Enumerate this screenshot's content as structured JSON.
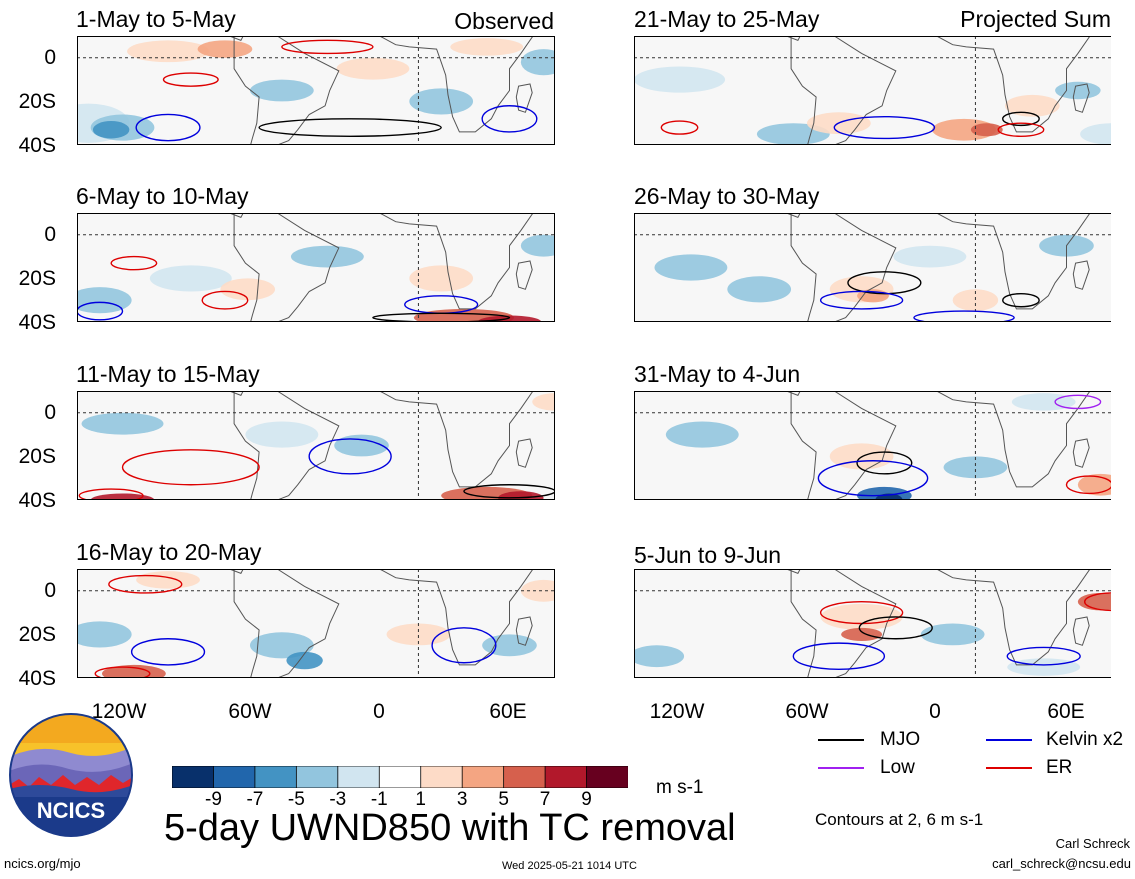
{
  "panels": [
    {
      "title": "1-May to 5-May",
      "tag": "Observed"
    },
    {
      "title": "21-May to 25-May",
      "tag": "Projected Sum"
    },
    {
      "title": "6-May to 10-May",
      "tag": ""
    },
    {
      "title": "26-May to 30-May",
      "tag": ""
    },
    {
      "title": "11-May to 15-May",
      "tag": ""
    },
    {
      "title": "31-May to 4-Jun",
      "tag": ""
    },
    {
      "title": "16-May to 20-May",
      "tag": ""
    },
    {
      "title": "5-Jun to 9-Jun",
      "tag": ""
    }
  ],
  "axes": {
    "y_ticks": [
      "0",
      "20S",
      "40S"
    ],
    "x_ticks": [
      "120W",
      "60W",
      "0",
      "60E"
    ]
  },
  "colorbar": {
    "colors": [
      "#08306b",
      "#2166ac",
      "#4393c3",
      "#92c5de",
      "#d1e5f0",
      "#ffffff",
      "#fddbc7",
      "#f4a582",
      "#d6604d",
      "#b2182b",
      "#67001f"
    ],
    "labels": [
      "-9",
      "-7",
      "-5",
      "-3",
      "-1",
      "1",
      "3",
      "5",
      "7",
      "9"
    ],
    "unit": "m s-1"
  },
  "legend": {
    "items": [
      {
        "label": "MJO",
        "color": "#000000"
      },
      {
        "label": "Kelvin x2",
        "color": "#0000dd"
      },
      {
        "label": "Low",
        "color": "#a020f0"
      },
      {
        "label": "ER",
        "color": "#dd0000"
      }
    ],
    "contours_note": "Contours at 2, 6 m s-1"
  },
  "main_title": "5-day UWND850 with TC removal",
  "logo_text": "NCICS",
  "footer": {
    "url": "ncics.org/mjo",
    "timestamp": "Wed 2025-05-21 1014 UTC",
    "author": "Carl Schreck",
    "email": "carl_schreck@ncsu.edu"
  }
}
